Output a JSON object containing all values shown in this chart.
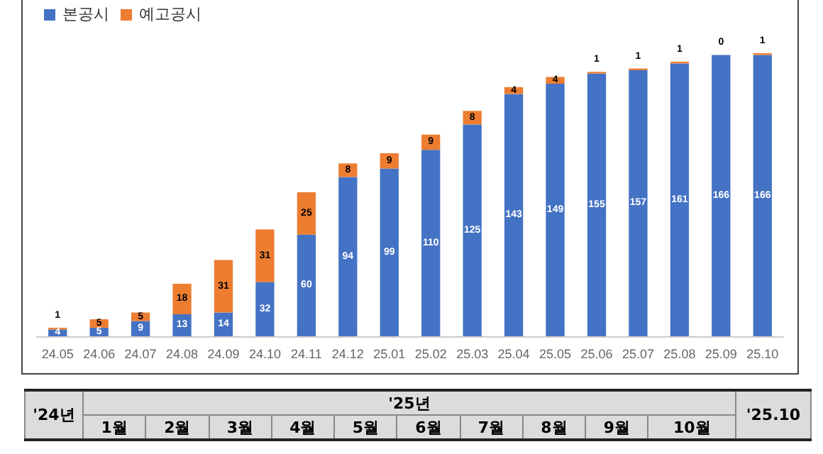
{
  "chart_data": {
    "type": "bar",
    "stacked": true,
    "data_labels": true,
    "legend": "top left",
    "categories": [
      "24.05",
      "24.06",
      "24.07",
      "24.08",
      "24.09",
      "24.10",
      "24.11",
      "24.12",
      "25.01",
      "25.02",
      "25.03",
      "25.04",
      "25.05",
      "25.06",
      "25.07",
      "25.08",
      "25.09",
      "25.10"
    ],
    "series": [
      {
        "name": "본공시",
        "color": "#4472c4",
        "values": [
          4,
          5,
          9,
          13,
          14,
          32,
          60,
          94,
          99,
          110,
          125,
          143,
          149,
          155,
          157,
          161,
          166,
          166
        ]
      },
      {
        "name": "예고공시",
        "color": "#ed7d31",
        "values": [
          1,
          5,
          5,
          18,
          31,
          31,
          25,
          8,
          9,
          9,
          8,
          4,
          4,
          1,
          1,
          1,
          0,
          1
        ]
      }
    ],
    "annotations": [
      "'24년",
      "'25년",
      "1월",
      "2월",
      "3월",
      "4월",
      "5월",
      "6월",
      "7월",
      "8월",
      "9월",
      "10월",
      "'25.10"
    ]
  }
}
